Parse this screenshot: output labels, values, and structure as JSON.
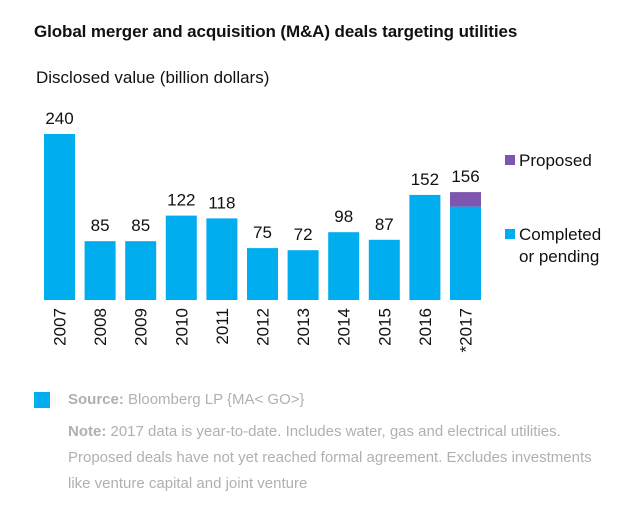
{
  "header": {
    "title": "Global merger and acquisition (M&A) deals targeting utilities"
  },
  "colors": {
    "completed": "#00ADEF",
    "proposed": "#7E56AF",
    "text": "#111111",
    "source_muted": "#B0B0B0"
  },
  "chart_data": {
    "type": "bar",
    "stacked": true,
    "title": "Global merger and acquisition (M&A) deals targeting utilities",
    "ylabel": "Disclosed value (billion dollars)",
    "xlabel": "",
    "ylim": [
      0,
      240
    ],
    "grid": false,
    "categories": [
      "2007",
      "2008",
      "2009",
      "2010",
      "2011",
      "2012",
      "2013",
      "2014",
      "2015",
      "2016",
      "*2017"
    ],
    "series": [
      {
        "name": "Completed or pending",
        "legend_lines": [
          "Completed",
          "or pending"
        ],
        "color": "#00ADEF",
        "values": [
          240,
          85,
          85,
          122,
          118,
          75,
          72,
          98,
          87,
          152,
          135
        ]
      },
      {
        "name": "Proposed",
        "legend_lines": [
          "Proposed"
        ],
        "color": "#7E56AF",
        "values": [
          0,
          0,
          0,
          0,
          0,
          0,
          0,
          0,
          0,
          0,
          21
        ]
      }
    ],
    "totals": [
      240,
      85,
      85,
      122,
      118,
      75,
      72,
      98,
      87,
      152,
      156
    ],
    "legend_position": "right"
  },
  "footer": {
    "source_label": "Source:",
    "source_text": " Bloomberg LP {MA< GO>}",
    "note_label": "Note:",
    "note_text": " 2017 data is year-to-date. Includes water, gas and electrical utilities. Proposed deals have not yet reached formal agreement. Excludes investments like venture capital and joint venture"
  }
}
